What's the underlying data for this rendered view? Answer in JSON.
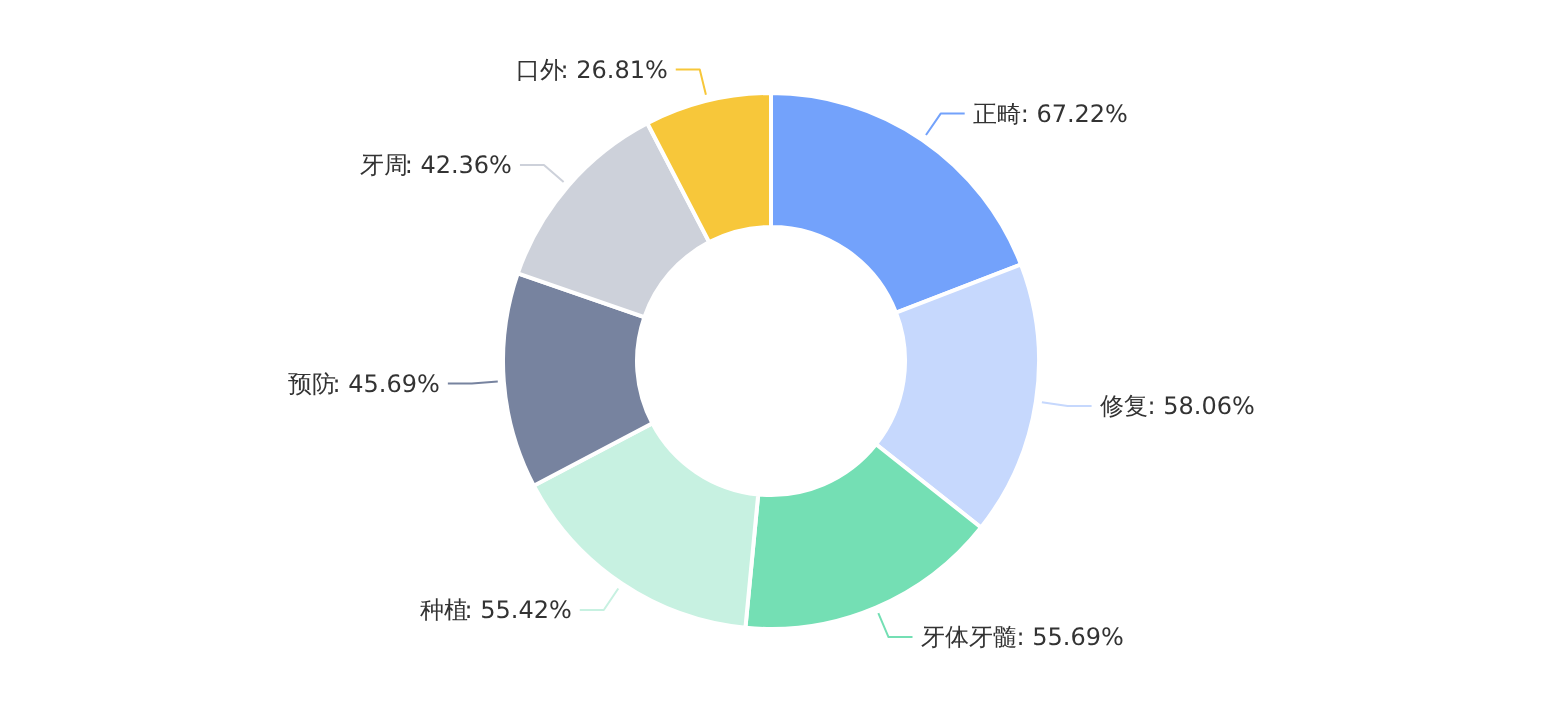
{
  "chart_data": {
    "type": "donut",
    "categories": [
      "正畸",
      "修复",
      "牙体牙髓",
      "种植",
      "预防",
      "牙周",
      "口外"
    ],
    "values": [
      67.22,
      58.06,
      55.69,
      55.42,
      45.69,
      42.36,
      26.81
    ],
    "value_labels": [
      ": 67.22%",
      ": 58.06%",
      ": 55.69%",
      ": 55.42%",
      ": 45.69%",
      ": 42.36%",
      ": 26.81%"
    ],
    "colors": [
      "#73a2fb",
      "#c6d8fd",
      "#74dfb4",
      "#c7f1e1",
      "#77839f",
      "#cdd1da",
      "#f7c73a"
    ]
  }
}
